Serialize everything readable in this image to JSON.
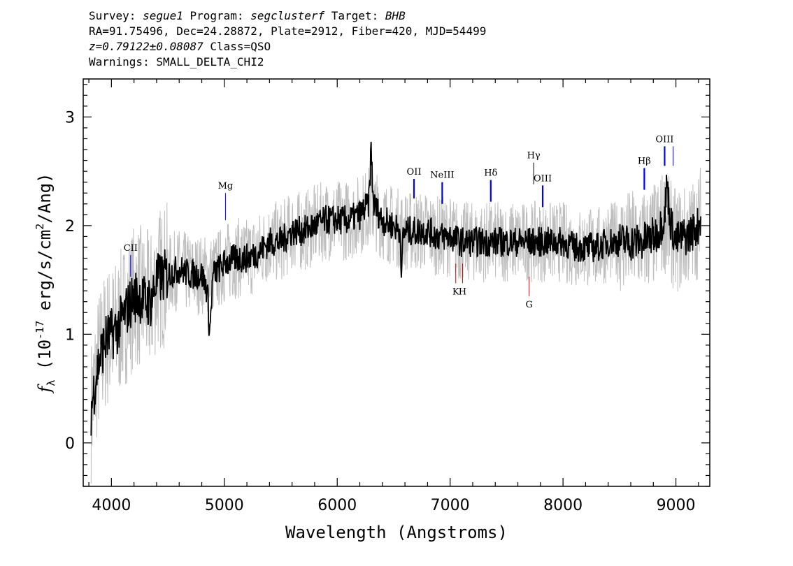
{
  "header": {
    "line1": {
      "survey_label": "Survey: ",
      "survey": "segue1",
      "program_label": " Program: ",
      "program": "segclusterf",
      "target_label": " Target: ",
      "target": "BHB"
    },
    "line2": "RA=91.75496, Dec=24.28872, Plate=2912, Fiber=420, MJD=54499",
    "line3": {
      "redshift": "z=0.79122±0.08087",
      "class_text": " Class=QSO"
    },
    "line4": "Warnings: SMALL_DELTA_CHI2"
  },
  "chart_data": {
    "type": "line",
    "xlabel": "Wavelength (Angstroms)",
    "ylabel_main": "f",
    "ylabel_sub": "λ",
    "ylabel_rest": " (10",
    "ylabel_exp": "-17",
    "ylabel_units": " erg/s/cm",
    "ylabel_sq": "2",
    "ylabel_tail": "/Ang)",
    "xlim": [
      3750,
      9300
    ],
    "ylim": [
      -0.4,
      3.35
    ],
    "x_ticks": [
      4000,
      5000,
      6000,
      7000,
      8000,
      9000
    ],
    "x_tick_labels": [
      "4000",
      "5000",
      "6000",
      "7000",
      "8000",
      "9000"
    ],
    "y_ticks": [
      0,
      1,
      2,
      3
    ],
    "y_tick_labels": [
      "0",
      "1",
      "2",
      "3"
    ],
    "grid": false,
    "series": [
      {
        "role": "flux-black",
        "color": "#000000",
        "x": [
          3820,
          3860,
          3900,
          3950,
          4000,
          4050,
          4100,
          4150,
          4200,
          4250,
          4300,
          4350,
          4400,
          4500,
          4600,
          4700,
          4800,
          4850,
          4870,
          4900,
          5000,
          5100,
          5200,
          5300,
          5400,
          5500,
          5600,
          5700,
          5800,
          5900,
          6000,
          6100,
          6200,
          6280,
          6300,
          6320,
          6400,
          6500,
          6560,
          6570,
          6580,
          6600,
          6700,
          6800,
          6900,
          7000,
          7100,
          7200,
          7300,
          7400,
          7500,
          7600,
          7700,
          7800,
          7900,
          8000,
          8100,
          8200,
          8300,
          8400,
          8500,
          8600,
          8700,
          8800,
          8850,
          8900,
          8920,
          8950,
          9000,
          9050,
          9100,
          9150,
          9200,
          9220
        ],
        "y": [
          0.3,
          0.6,
          0.8,
          0.95,
          1.0,
          1.05,
          1.15,
          1.25,
          1.35,
          1.35,
          1.3,
          1.3,
          1.5,
          1.55,
          1.6,
          1.55,
          1.55,
          1.4,
          1.0,
          1.55,
          1.65,
          1.7,
          1.7,
          1.75,
          1.85,
          1.85,
          1.95,
          1.95,
          2.0,
          2.05,
          2.05,
          2.05,
          2.1,
          2.2,
          2.7,
          2.2,
          2.05,
          2.0,
          1.95,
          1.4,
          1.9,
          1.95,
          1.95,
          1.95,
          1.9,
          1.9,
          1.85,
          1.85,
          1.85,
          1.85,
          1.85,
          1.85,
          1.85,
          1.85,
          1.85,
          1.85,
          1.8,
          1.8,
          1.8,
          1.85,
          1.85,
          1.85,
          1.85,
          1.9,
          1.95,
          2.1,
          2.4,
          2.05,
          1.85,
          1.9,
          1.9,
          1.95,
          2.0,
          2.1
        ]
      },
      {
        "role": "error-grey",
        "color": "#bebebe",
        "x": [
          3820,
          3860,
          3900,
          3950,
          4000,
          4050,
          4100,
          4150,
          4200,
          4250,
          4300,
          4350,
          4400,
          4500,
          4600,
          4700,
          4800,
          4900,
          5000,
          5100,
          5200,
          5300,
          5400,
          5500,
          5600,
          5700,
          5800,
          5900,
          6000,
          6100,
          6200,
          6300,
          6400,
          6500,
          6600,
          6700,
          6800,
          6900,
          7000,
          7100,
          7200,
          7300,
          7400,
          7500,
          7600,
          7700,
          7800,
          7900,
          8000,
          8100,
          8200,
          8300,
          8400,
          8500,
          8600,
          8700,
          8800,
          8900,
          9000,
          9100,
          9200,
          9220
        ],
        "y": [
          0.3,
          0.6,
          0.8,
          0.95,
          1.0,
          1.05,
          1.15,
          1.25,
          1.35,
          1.35,
          1.3,
          1.3,
          1.5,
          1.55,
          1.6,
          1.55,
          1.55,
          1.55,
          1.65,
          1.7,
          1.7,
          1.75,
          1.85,
          1.85,
          1.95,
          1.95,
          2.0,
          2.05,
          2.05,
          2.05,
          2.1,
          2.2,
          2.05,
          2.0,
          1.95,
          1.95,
          1.95,
          1.9,
          1.9,
          1.85,
          1.85,
          1.85,
          1.85,
          1.85,
          1.85,
          1.85,
          1.85,
          1.85,
          1.85,
          1.8,
          1.8,
          1.8,
          1.85,
          1.85,
          1.85,
          1.85,
          1.9,
          2.05,
          1.85,
          1.9,
          2.0,
          2.1
        ]
      }
    ],
    "emission_lines": [
      {
        "label": "CII",
        "x": 4170,
        "y0": 1.53,
        "y1": 1.73,
        "color": "#0000ff",
        "thin": true
      },
      {
        "label": "Mg",
        "x": 5010,
        "y0": 2.05,
        "y1": 2.3,
        "color": "#0000ff",
        "thin": true
      },
      {
        "label": "OII",
        "x": 6680,
        "y0": 2.25,
        "y1": 2.43,
        "color": "#0000ff",
        "thin": false
      },
      {
        "label": "NeIII",
        "x": 6930,
        "y0": 2.2,
        "y1": 2.4,
        "color": "#0000ff",
        "thin": false
      },
      {
        "label": "Hδ",
        "x": 7360,
        "y0": 2.22,
        "y1": 2.42,
        "color": "#0000ff",
        "thin": false
      },
      {
        "label": "Hγ",
        "x": 7740,
        "y0": 2.38,
        "y1": 2.58,
        "color": "#000000",
        "thin": true
      },
      {
        "label": "OIII",
        "x": 7820,
        "y0": 2.17,
        "y1": 2.37,
        "color": "#0000ff",
        "thin": false
      },
      {
        "label": "Hβ",
        "x": 8720,
        "y0": 2.33,
        "y1": 2.53,
        "color": "#0000ff",
        "thin": false
      },
      {
        "label": "OIII",
        "x": 8900,
        "y0": 2.55,
        "y1": 2.73,
        "color": "#0000ff",
        "thin": false
      },
      {
        "label": "",
        "x": 8975,
        "y0": 2.55,
        "y1": 2.73,
        "color": "#0000ff",
        "thin": true
      }
    ],
    "absorption_lines": [
      {
        "label": "K",
        "x": 7050,
        "y0": 1.47,
        "y1": 1.65,
        "color": "#cc0000"
      },
      {
        "label": "H",
        "x": 7110,
        "y0": 1.47,
        "y1": 1.65,
        "color": "#cc0000"
      },
      {
        "label": "G",
        "x": 7700,
        "y0": 1.35,
        "y1": 1.53,
        "color": "#cc0000"
      }
    ]
  }
}
